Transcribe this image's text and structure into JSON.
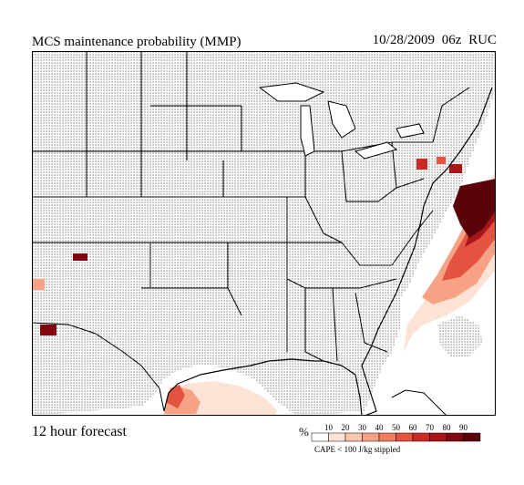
{
  "header": {
    "title": "MCS maintenance probability (MMP)",
    "run_info": "10/28/2009  06z  RUC"
  },
  "footer": {
    "forecast": "12 hour forecast",
    "percent_symbol": "%",
    "stipple_note": "CAPE < 100 J/kg stippled"
  },
  "legend": {
    "ticks": [
      "10",
      "20",
      "30",
      "40",
      "50",
      "60",
      "70",
      "80",
      "90"
    ],
    "colors": [
      "#ffffff",
      "#fde3d6",
      "#fbc4ad",
      "#f7a285",
      "#f07c5f",
      "#e4533f",
      "#cc2b25",
      "#a91519",
      "#82080f",
      "#5a030a"
    ]
  },
  "map": {
    "region": "contiguous United States and adjacent areas",
    "stipple_color": "#000000",
    "land_color": "#ffffff"
  }
}
